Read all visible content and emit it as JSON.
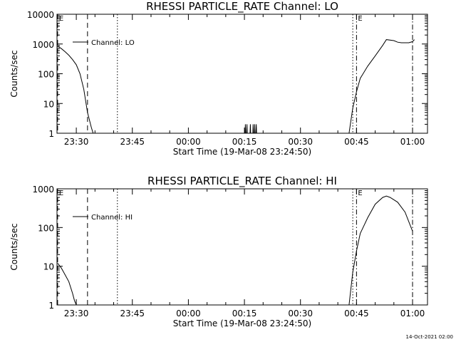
{
  "footer": {
    "date": "14-Oct-2021 02:00"
  },
  "chart_data": [
    {
      "type": "line",
      "title": "RHESSI PARTICLE_RATE Channel: LO",
      "ylabel": "Counts/sec",
      "xlabel": "Start Time (19-Mar-08 23:24:50)",
      "yscale": "log",
      "ylim": [
        1,
        10000
      ],
      "xlim": [
        "23:24:50",
        "01:04:00"
      ],
      "y_ticks": [
        "1",
        "10",
        "100",
        "1000",
        "10000"
      ],
      "x_ticks": [
        "23:30",
        "23:45",
        "00:00",
        "00:15",
        "00:30",
        "00:45",
        "01:00"
      ],
      "legend": {
        "entries": [
          "Channel: LO"
        ],
        "position": "top-left"
      },
      "markers": [
        {
          "time": "23:25",
          "label": "E",
          "style": "dash"
        },
        {
          "time": "23:33",
          "label": "",
          "style": "dash"
        },
        {
          "time": "23:41",
          "label": "",
          "style": "dot"
        },
        {
          "time": "00:44",
          "label": "",
          "style": "dot"
        },
        {
          "time": "00:45",
          "label": "E",
          "style": "dashdot"
        },
        {
          "time": "01:00",
          "label": "",
          "style": "dashdot"
        }
      ],
      "series": [
        {
          "name": "Channel: LO",
          "x": [
            "23:25",
            "23:26",
            "23:27",
            "23:28",
            "23:29",
            "23:30",
            "23:31",
            "23:32",
            "23:33",
            "23:34",
            "23:34:30",
            "23:35",
            "00:15:10",
            "00:15:15",
            "00:15:20",
            "00:15:35",
            "00:15:40",
            "00:15:45",
            "00:16:30",
            "00:16:35",
            "00:16:40",
            "00:17:15",
            "00:17:20",
            "00:17:25",
            "00:17:40",
            "00:17:45",
            "00:17:50",
            "00:18:05",
            "00:18:10",
            "00:18:15",
            "00:43",
            "00:44",
            "00:45",
            "00:46",
            "00:48",
            "00:50",
            "00:52",
            "00:53",
            "00:55",
            "00:56",
            "00:57",
            "00:59",
            "01:00",
            "01:00:30"
          ],
          "y": [
            850,
            700,
            550,
            420,
            300,
            200,
            100,
            30,
            5,
            1.6,
            1,
            1,
            1,
            2,
            1,
            1,
            2,
            1,
            1,
            2,
            1,
            1,
            2,
            1,
            1,
            2,
            1,
            1,
            2,
            1,
            1,
            7,
            25,
            70,
            180,
            400,
            900,
            1400,
            1300,
            1150,
            1100,
            1100,
            1200,
            1400
          ]
        }
      ]
    },
    {
      "type": "line",
      "title": "RHESSI PARTICLE_RATE Channel: HI",
      "ylabel": "Counts/sec",
      "xlabel": "Start Time (19-Mar-08 23:24:50)",
      "yscale": "log",
      "ylim": [
        1,
        1000
      ],
      "xlim": [
        "23:24:50",
        "01:04:00"
      ],
      "y_ticks": [
        "1",
        "10",
        "100",
        "1000"
      ],
      "x_ticks": [
        "23:30",
        "23:45",
        "00:00",
        "00:15",
        "00:30",
        "00:45",
        "01:00"
      ],
      "legend": {
        "entries": [
          "Channel: HI"
        ],
        "position": "top-left"
      },
      "markers": [
        {
          "time": "23:25",
          "label": "E",
          "style": "dash"
        },
        {
          "time": "23:33",
          "label": "",
          "style": "dash"
        },
        {
          "time": "23:41",
          "label": "",
          "style": "dot"
        },
        {
          "time": "00:44",
          "label": "",
          "style": "dot"
        },
        {
          "time": "00:45",
          "label": "E",
          "style": "dashdot"
        },
        {
          "time": "01:00",
          "label": "",
          "style": "dashdot"
        }
      ],
      "series": [
        {
          "name": "Channel: HI",
          "x": [
            "23:25",
            "23:26",
            "23:27",
            "23:28",
            "23:29",
            "23:29:30",
            "23:30",
            "00:43",
            "00:44",
            "00:45",
            "00:46",
            "00:48",
            "00:50",
            "00:52",
            "00:53",
            "00:54",
            "00:56",
            "00:58",
            "01:00"
          ],
          "y": [
            12,
            9,
            6,
            4,
            2,
            1.3,
            1,
            1,
            7,
            25,
            70,
            180,
            400,
            600,
            650,
            600,
            450,
            250,
            80
          ]
        }
      ]
    }
  ]
}
